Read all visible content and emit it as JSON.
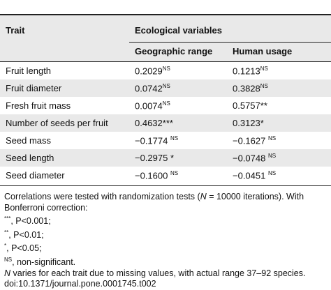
{
  "table": {
    "header": {
      "trait": "Trait",
      "group": "Ecological variables",
      "columns": [
        "Geographic range",
        "Human usage"
      ]
    },
    "rows": [
      {
        "trait": "Fruit length",
        "cells": [
          {
            "text": "0.2029",
            "sup": "NS"
          },
          {
            "text": "0.1213",
            "sup": "NS"
          }
        ]
      },
      {
        "trait": "Fruit diameter",
        "cells": [
          {
            "text": "0.0742",
            "sup": "NS"
          },
          {
            "text": "0.3828",
            "sup": "NS"
          }
        ]
      },
      {
        "trait": "Fresh fruit mass",
        "cells": [
          {
            "text": "0.0074",
            "sup": "NS"
          },
          {
            "text": "0.5757**"
          }
        ]
      },
      {
        "trait": "Number of seeds per fruit",
        "cells": [
          {
            "text": "0.4632***"
          },
          {
            "text": "0.3123*"
          }
        ]
      },
      {
        "trait": "Seed mass",
        "cells": [
          {
            "text": "−0.1774 ",
            "sup": "NS"
          },
          {
            "text": "−0.1627 ",
            "sup": "NS"
          }
        ]
      },
      {
        "trait": "Seed length",
        "cells": [
          {
            "text": "−0.2975 *"
          },
          {
            "text": "−0.0748 ",
            "sup": "NS"
          }
        ]
      },
      {
        "trait": "Seed diameter",
        "cells": [
          {
            "text": "−0.1600 ",
            "sup": "NS"
          },
          {
            "text": "−0.0451 ",
            "sup": "NS"
          }
        ]
      }
    ]
  },
  "footnotes": {
    "intro": [
      "Correlations were tested with randomization tests (",
      "N",
      " = 10000 iterations). With Bonferroni correction:"
    ],
    "legend": [
      {
        "sup": "***",
        "text": ", P<0.001;"
      },
      {
        "sup": "**",
        "text": ", P<0.01;"
      },
      {
        "sup": "*",
        "text": ", P<0.05;"
      },
      {
        "sup": "NS",
        "text": ", non-significant."
      }
    ],
    "range": {
      "italic": "N",
      "text": " varies for each trait due to missing values, with actual range 37–92 species."
    },
    "doi": "doi:10.1371/journal.pone.0001745.t002"
  }
}
